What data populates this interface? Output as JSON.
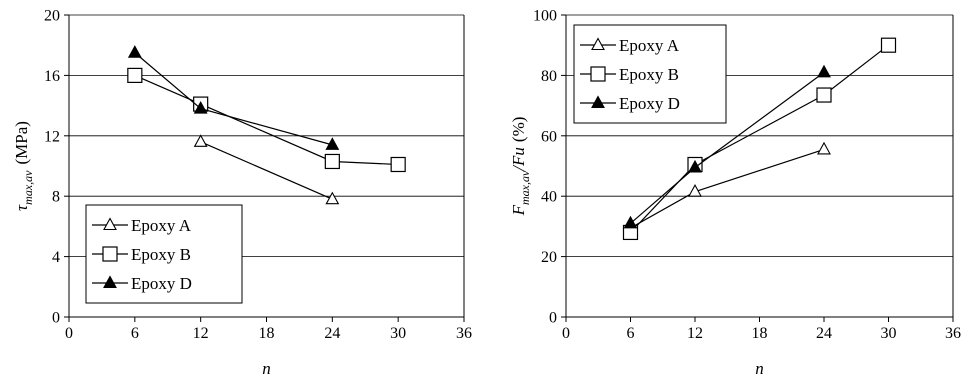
{
  "chart_data": [
    {
      "type": "line",
      "xlabel": "n",
      "ylabel_main": "τ",
      "ylabel_sub": "max,av",
      "ylabel_unit": "(MPa)",
      "xlim": [
        0,
        36
      ],
      "ylim": [
        0,
        20
      ],
      "xticks": [
        0,
        6,
        12,
        18,
        24,
        30,
        36
      ],
      "yticks": [
        0,
        4,
        8,
        12,
        16,
        20
      ],
      "grid": "horizontal",
      "legend_position": "bottom-left",
      "series": [
        {
          "name": "Epoxy A",
          "marker": "open-triangle",
          "points": [
            [
              12,
              11.6
            ],
            [
              24,
              7.8
            ]
          ]
        },
        {
          "name": "Epoxy B",
          "marker": "open-square",
          "points": [
            [
              6,
              16.0
            ],
            [
              12,
              14.1
            ],
            [
              24,
              10.3
            ],
            [
              30,
              10.1
            ]
          ]
        },
        {
          "name": "Epoxy D",
          "marker": "filled-triangle",
          "points": [
            [
              6,
              17.5
            ],
            [
              12,
              13.8
            ],
            [
              24,
              11.4
            ]
          ]
        }
      ]
    },
    {
      "type": "line",
      "xlabel": "n",
      "ylabel_main": "F",
      "ylabel_sub": "max,av",
      "ylabel_rest": "/Fu",
      "ylabel_unit": "(%)",
      "xlim": [
        0,
        36
      ],
      "ylim": [
        0,
        100
      ],
      "xticks": [
        0,
        6,
        12,
        18,
        24,
        30,
        36
      ],
      "yticks": [
        0,
        20,
        40,
        60,
        80,
        100
      ],
      "grid": "horizontal",
      "legend_position": "top-left",
      "series": [
        {
          "name": "Epoxy A",
          "marker": "open-triangle",
          "points": [
            [
              6,
              29.5
            ],
            [
              12,
              41.5
            ],
            [
              24,
              55.5
            ]
          ]
        },
        {
          "name": "Epoxy B",
          "marker": "open-square",
          "points": [
            [
              6,
              28.0
            ],
            [
              12,
              50.5
            ],
            [
              24,
              73.5
            ],
            [
              30,
              90.0
            ]
          ]
        },
        {
          "name": "Epoxy D",
          "marker": "filled-triangle",
          "points": [
            [
              6,
              31.0
            ],
            [
              12,
              49.5
            ],
            [
              24,
              81.0
            ]
          ]
        }
      ]
    }
  ]
}
